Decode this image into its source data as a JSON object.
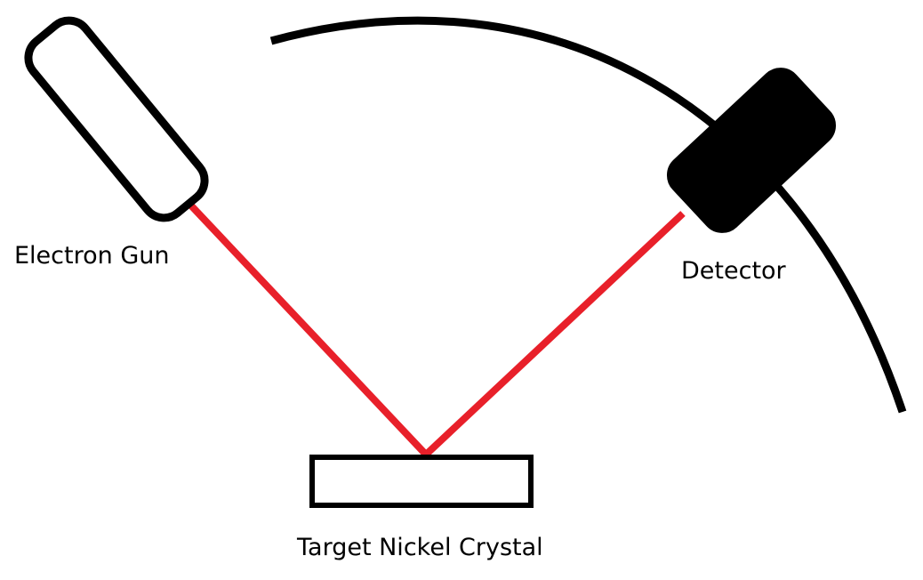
{
  "labels": {
    "electron_gun": "Electron Gun",
    "detector": "Detector",
    "target": "Target Nickel Crystal"
  },
  "colors": {
    "background": "#ffffff",
    "outline": "#000000",
    "beam": "#e8202a",
    "detector_fill": "#000000"
  }
}
